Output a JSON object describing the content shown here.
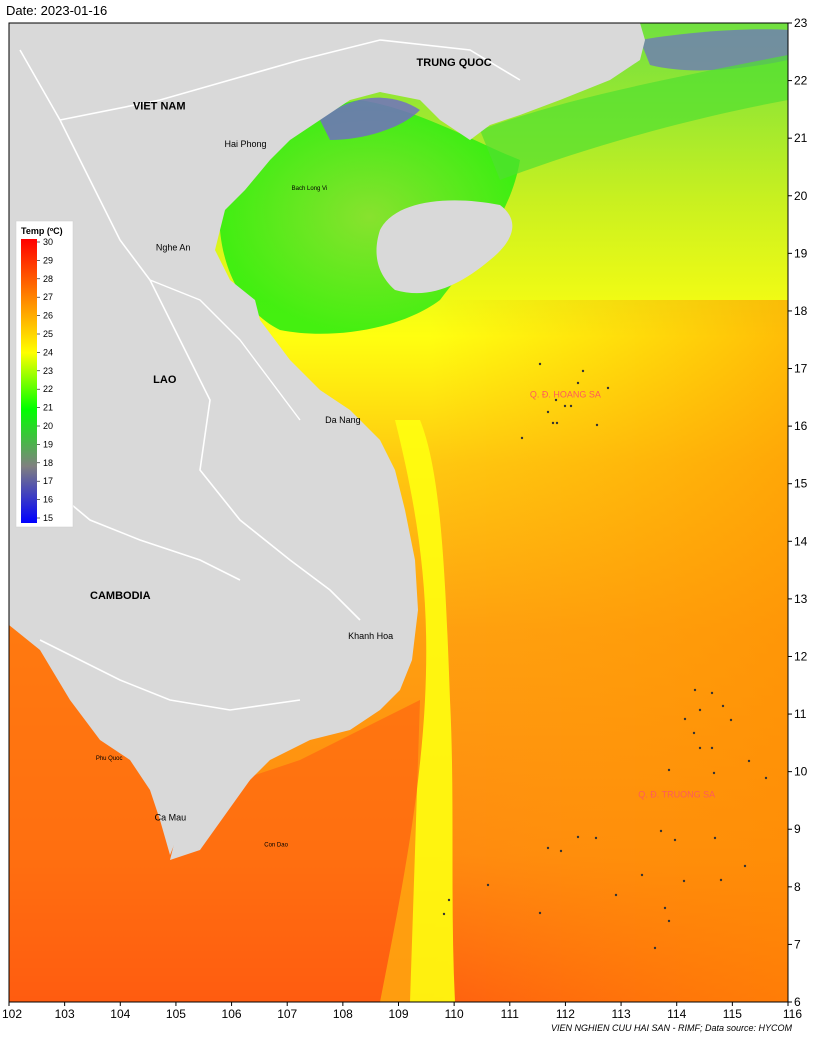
{
  "date_label": "Date: 2023-01-16",
  "credit": "VIEN NGHIEN CUU HAI SAN - RIMF; Data source: HYCOM",
  "map": {
    "lon_range": [
      102,
      116
    ],
    "lat_range": [
      6,
      23
    ],
    "x_ticks": [
      "102",
      "103",
      "104",
      "105",
      "106",
      "107",
      "108",
      "109",
      "110",
      "111",
      "112",
      "113",
      "114",
      "115",
      "116"
    ],
    "y_ticks": [
      "6",
      "7",
      "8",
      "9",
      "10",
      "11",
      "12",
      "13",
      "14",
      "15",
      "16",
      "17",
      "18",
      "19",
      "20",
      "21",
      "22",
      "23"
    ],
    "land_color": "#d9d9d9",
    "border_color": "#ffffff",
    "countries": [
      {
        "name": "TRUNG QUOC",
        "lon": 110.0,
        "lat": 22.25
      },
      {
        "name": "VIET NAM",
        "lon": 104.7,
        "lat": 21.5
      },
      {
        "name": "LAO",
        "lon": 104.8,
        "lat": 16.75
      },
      {
        "name": "CAMBODIA",
        "lon": 104.0,
        "lat": 13.0
      }
    ],
    "places": [
      {
        "name": "Hai Phong",
        "lon": 106.25,
        "lat": 20.85,
        "size": "normal"
      },
      {
        "name": "Nghe An",
        "lon": 104.95,
        "lat": 19.05,
        "size": "normal"
      },
      {
        "name": "Da Nang",
        "lon": 108.0,
        "lat": 16.05,
        "size": "normal"
      },
      {
        "name": "Khanh Hoa",
        "lon": 108.5,
        "lat": 12.3,
        "size": "normal"
      },
      {
        "name": "Ca Mau",
        "lon": 104.9,
        "lat": 9.15,
        "size": "normal"
      },
      {
        "name": "Bach Long Vi",
        "lon": 107.4,
        "lat": 20.1,
        "size": "small"
      },
      {
        "name": "Phu Quoc",
        "lon": 103.8,
        "lat": 10.2,
        "size": "small"
      },
      {
        "name": "Con Dao",
        "lon": 106.8,
        "lat": 8.7,
        "size": "small"
      }
    ],
    "archipelagos": [
      {
        "name": "Q. Đ. HOANG SA",
        "lon": 112.0,
        "lat": 16.5
      },
      {
        "name": "Q. Đ. TRUONG SA",
        "lon": 114.0,
        "lat": 9.55
      }
    ]
  },
  "legend": {
    "title": "Temp (ºC)",
    "min": 15,
    "max": 30,
    "ticks": [
      "30",
      "29",
      "28",
      "27",
      "26",
      "25",
      "24",
      "23",
      "22",
      "21",
      "20",
      "19",
      "18",
      "17",
      "16",
      "15"
    ],
    "colors": [
      "#ff0000",
      "#ff7f00",
      "#ffff00",
      "#00ff00",
      "#808080",
      "#0000ff"
    ]
  }
}
